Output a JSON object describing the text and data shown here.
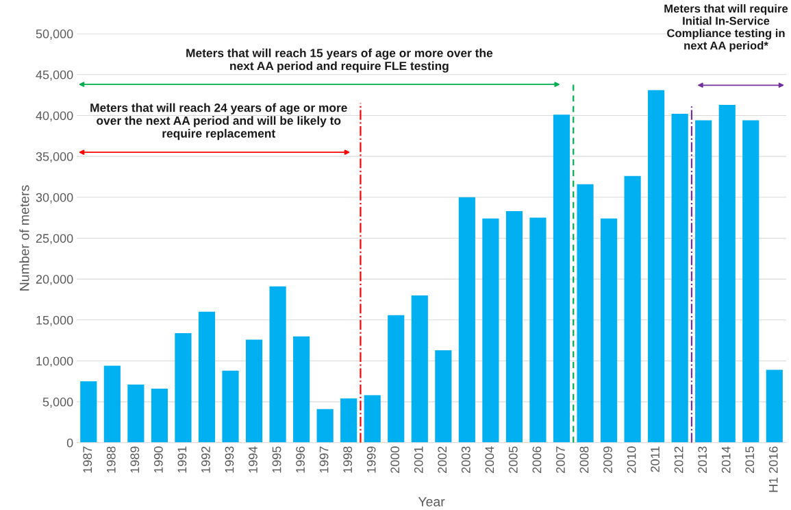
{
  "chart_data": {
    "type": "bar",
    "xlabel": "Year",
    "ylabel": "Number of meters",
    "color": "#00b0f0",
    "categories": [
      "1987",
      "1988",
      "1989",
      "1990",
      "1991",
      "1992",
      "1993",
      "1994",
      "1995",
      "1996",
      "1997",
      "1998",
      "1999",
      "2000",
      "2001",
      "2002",
      "2003",
      "2004",
      "2005",
      "2006",
      "2007",
      "2008",
      "2009",
      "2010",
      "2011",
      "2012",
      "2013",
      "2014",
      "2015",
      "H1 2016"
    ],
    "values": [
      7500,
      9400,
      7100,
      6600,
      13400,
      16000,
      8800,
      12600,
      19100,
      13000,
      4100,
      5400,
      5800,
      15600,
      18000,
      11300,
      30000,
      27400,
      28300,
      27500,
      40100,
      31600,
      27400,
      32600,
      43100,
      40200,
      39400,
      41300,
      39400,
      8900
    ],
    "ylim": [
      0,
      50000
    ],
    "yticks": [
      {
        "value": 0,
        "label": "0"
      },
      {
        "value": 5000,
        "label": "5,000"
      },
      {
        "value": 10000,
        "label": "10,000"
      },
      {
        "value": 15000,
        "label": "15,000"
      },
      {
        "value": 20000,
        "label": "20,000"
      },
      {
        "value": 25000,
        "label": "25,000"
      },
      {
        "value": 30000,
        "label": "30,000"
      },
      {
        "value": 35000,
        "label": "35,000"
      },
      {
        "value": 40000,
        "label": "40,000"
      },
      {
        "value": 45000,
        "label": "45,000"
      },
      {
        "value": 50000,
        "label": "50,000"
      }
    ],
    "grid": "y",
    "ref_lines": [
      {
        "axis": "x",
        "value": "1998",
        "color": "#ff0000",
        "line_style": "dashdot"
      },
      {
        "axis": "x",
        "value": "2007",
        "color": "#00b050",
        "line_style": "dashed"
      },
      {
        "axis": "x",
        "value": "2012",
        "color": "#7030a0",
        "line_style": "dashdot"
      }
    ],
    "annotations": [
      "Meters that will reach 24 years of age or more\nover the next AA period and will be likely to\nrequire replacement",
      "Meters that will reach 15 years of age or more over the\nnext AA period and require FLE testing",
      "Meters that will require\nInitial In-Service\nCompliance testing in\nnext AA period*"
    ]
  }
}
